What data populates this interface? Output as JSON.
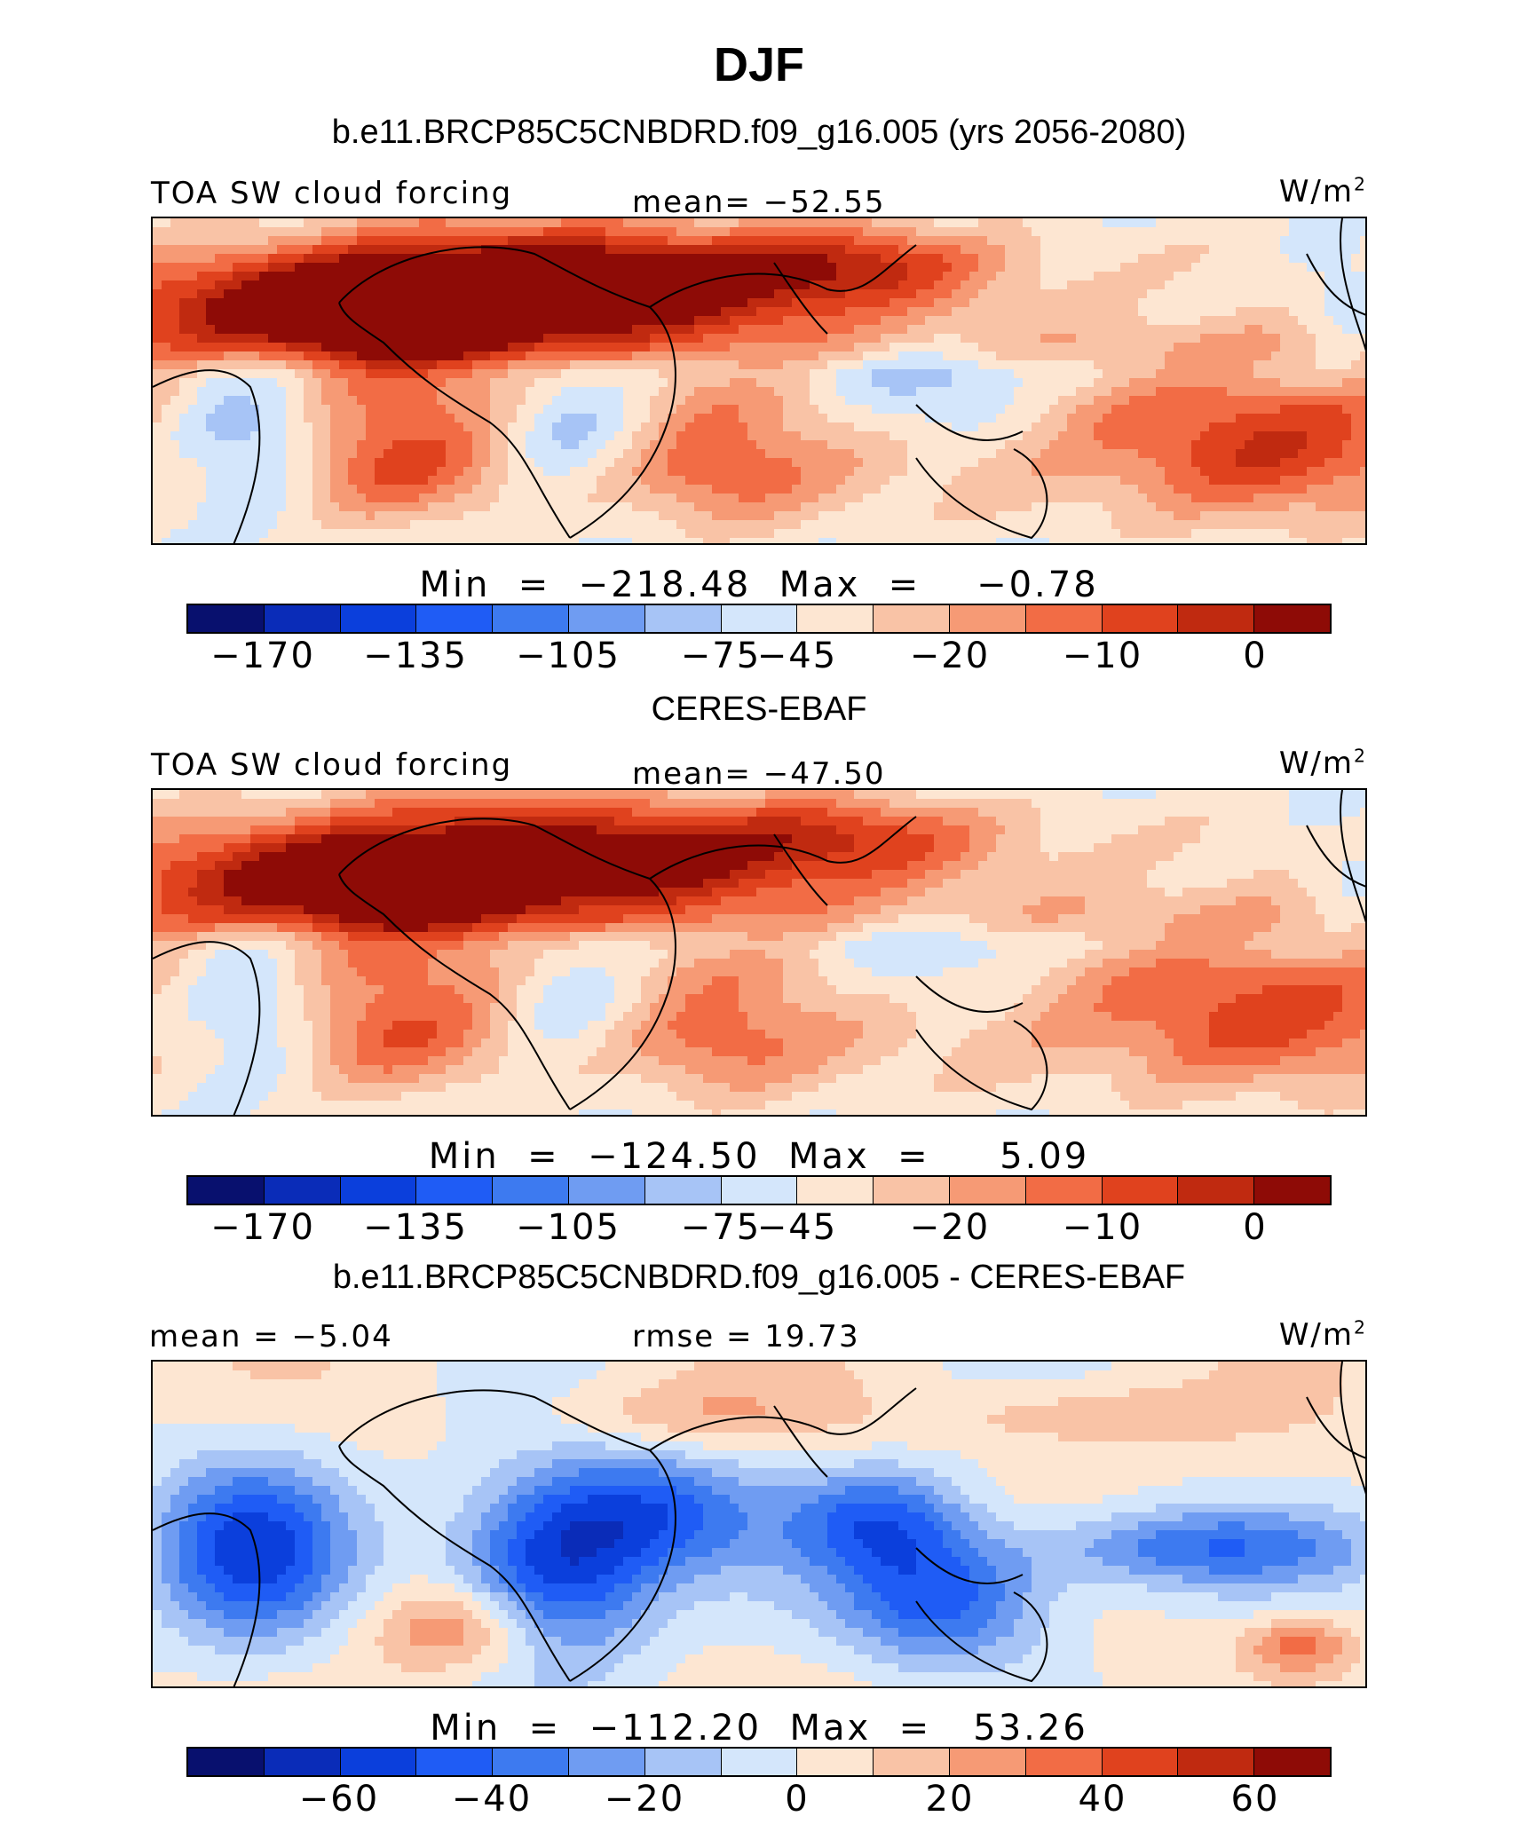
{
  "title": "DJF",
  "units_label": "W/m",
  "units_exponent": "2",
  "panels": [
    {
      "subtitle": "b.e11.BRCP85C5CNBDRD.f09_g16.005 (yrs 2056-2080)",
      "left_label": "TOA SW cloud forcing",
      "center_label": "mean= −52.55",
      "minmax": "Min  =  −218.48  Max  =    −0.78",
      "tick_labels": [
        "−170",
        "−135",
        "−105",
        "−75",
        "−45",
        "−20",
        "−10",
        "0"
      ],
      "palette": "cf"
    },
    {
      "subtitle": "CERES-EBAF",
      "left_label": "TOA SW cloud forcing",
      "center_label": "mean= −47.50",
      "minmax": "Min  =  −124.50  Max  =     5.09",
      "tick_labels": [
        "−170",
        "−135",
        "−105",
        "−75",
        "−45",
        "−20",
        "−10",
        "0"
      ],
      "palette": "cf"
    },
    {
      "subtitle": "b.e11.BRCP85C5CNBDRD.f09_g16.005 - CERES-EBAF",
      "left_label": "mean =   −5.04",
      "center_label": "rmse =   19.73",
      "minmax": "Min  =  −112.20  Max  =   53.26",
      "tick_labels": [
        "−60",
        "−40",
        "−20",
        "0",
        "20",
        "40",
        "60"
      ],
      "palette": "diff"
    }
  ],
  "colors": {
    "scale": [
      "#08106e",
      "#0a2cb8",
      "#0b3fdc",
      "#1f5cf5",
      "#3d7af0",
      "#6f9cf2",
      "#a7c4f6",
      "#d4e6fb",
      "#fde6d2",
      "#f9c3a6",
      "#f69a75",
      "#f26c45",
      "#e0421e",
      "#c02a10",
      "#8e0b06"
    ],
    "land_outline": "#000000"
  }
}
